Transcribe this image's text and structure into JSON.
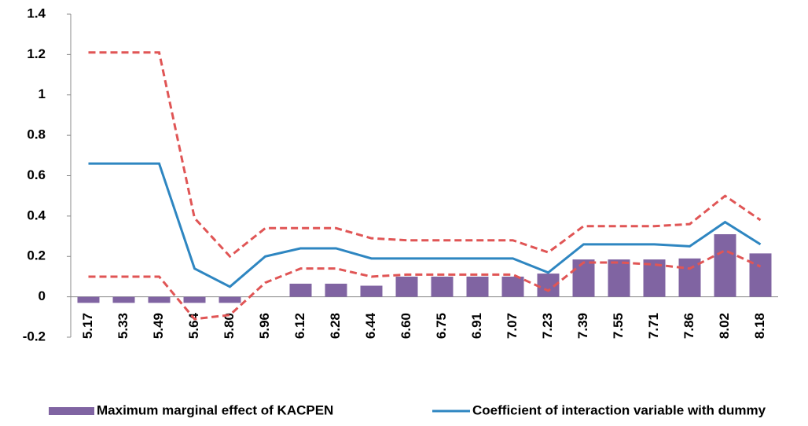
{
  "chart_data": {
    "type": "bar_line",
    "categories": [
      "5.17",
      "5.33",
      "5.49",
      "5.64",
      "5.80",
      "5.96",
      "6.12",
      "6.28",
      "6.44",
      "6.60",
      "6.75",
      "6.91",
      "7.07",
      "7.23",
      "7.39",
      "7.55",
      "7.71",
      "7.86",
      "8.02",
      "8.18"
    ],
    "series": [
      {
        "name": "Maximum marginal effect of KACPEN",
        "type": "bar",
        "color": "#8064a2",
        "values": [
          -0.03,
          -0.03,
          -0.03,
          -0.03,
          -0.03,
          0,
          0.065,
          0.065,
          0.055,
          0.1,
          0.1,
          0.1,
          0.1,
          0.115,
          0.185,
          0.185,
          0.185,
          0.19,
          0.31,
          0.215
        ]
      },
      {
        "name": "Coefficient of interaction variable with dummy",
        "type": "line",
        "color": "#2e86c1",
        "values": [
          0.66,
          0.66,
          0.66,
          0.14,
          0.05,
          0.2,
          0.24,
          0.24,
          0.19,
          0.19,
          0.19,
          0.19,
          0.19,
          0.12,
          0.26,
          0.26,
          0.26,
          0.25,
          0.37,
          0.26
        ]
      },
      {
        "type": "line",
        "dashed": true,
        "color": "#e05555",
        "values": [
          1.21,
          1.21,
          1.21,
          0.39,
          0.2,
          0.34,
          0.34,
          0.34,
          0.29,
          0.28,
          0.28,
          0.28,
          0.28,
          0.22,
          0.35,
          0.35,
          0.35,
          0.36,
          0.5,
          0.38
        ]
      },
      {
        "type": "line",
        "dashed": true,
        "color": "#e05555",
        "values": [
          0.1,
          0.1,
          0.1,
          -0.11,
          -0.09,
          0.07,
          0.14,
          0.14,
          0.1,
          0.11,
          0.11,
          0.11,
          0.11,
          0.03,
          0.17,
          0.17,
          0.16,
          0.14,
          0.23,
          0.15
        ]
      }
    ],
    "ylim": [
      -0.2,
      1.4
    ],
    "yticks": [
      -0.2,
      0,
      0.2,
      0.4,
      0.6,
      0.8,
      1,
      1.2,
      1.4
    ],
    "grid": false,
    "legend": "bottom"
  }
}
